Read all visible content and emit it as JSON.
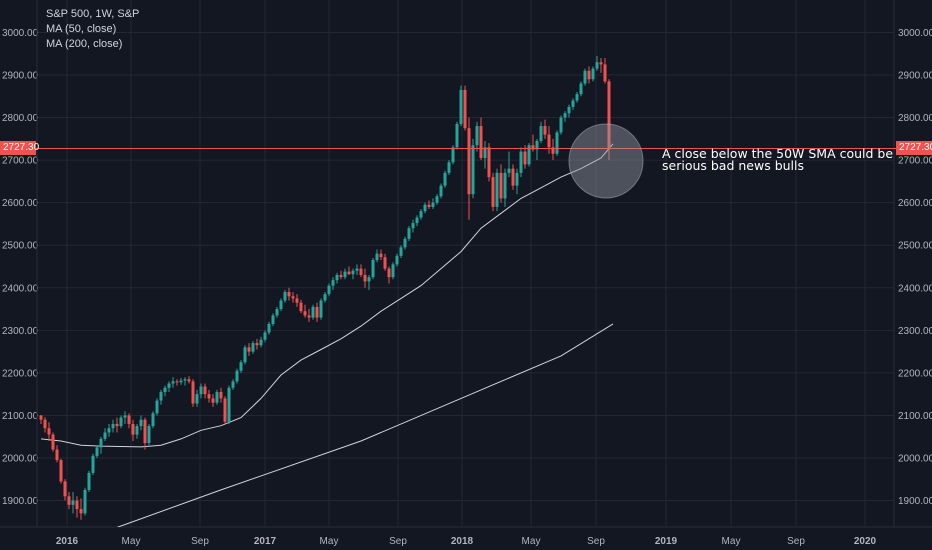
{
  "chart_data": {
    "type": "candlestick",
    "title": "S&P 500, 1W, S&P",
    "indicators": [
      "MA (50, close)",
      "MA (200, close)"
    ],
    "last_price": "2727.30",
    "annotation": [
      "A close below the 50W SMA could be",
      "serious bad news bulls"
    ],
    "y_ticks": [
      "1900.00",
      "2000.00",
      "2100.00",
      "2200.00",
      "2300.00",
      "2400.00",
      "2500.00",
      "2600.00",
      "2700.00",
      "2800.00",
      "2900.00",
      "3000.00"
    ],
    "ylim": [
      1830,
      3050
    ],
    "x_ticks": [
      "2016",
      "May",
      "Sep",
      "2017",
      "May",
      "Sep",
      "2018",
      "May",
      "Sep",
      "2019",
      "May",
      "Sep",
      "2020"
    ],
    "grid": true,
    "colors": {
      "up": "#26a69a",
      "down": "#ef5350",
      "background": "#131722",
      "ma": "#d1d4dc",
      "price_line": "#ef5350",
      "highlight": "#9598a1"
    },
    "ohlc": [
      [
        2100,
        2101,
        2080,
        2090
      ],
      [
        2090,
        2096,
        2060,
        2070
      ],
      [
        2070,
        2084,
        2040,
        2055
      ],
      [
        2055,
        2060,
        2015,
        2020
      ],
      [
        2020,
        2030,
        1990,
        1995
      ],
      [
        1995,
        1998,
        1940,
        1945
      ],
      [
        1945,
        1950,
        1900,
        1910
      ],
      [
        1910,
        1920,
        1880,
        1890
      ],
      [
        1890,
        1920,
        1870,
        1900
      ],
      [
        1900,
        1910,
        1860,
        1880
      ],
      [
        1880,
        1905,
        1855,
        1870
      ],
      [
        1870,
        1930,
        1865,
        1925
      ],
      [
        1925,
        1970,
        1920,
        1965
      ],
      [
        1965,
        2010,
        1960,
        2005
      ],
      [
        2005,
        2030,
        2000,
        2025
      ],
      [
        2025,
        2050,
        2010,
        2045
      ],
      [
        2045,
        2070,
        2040,
        2060
      ],
      [
        2060,
        2080,
        2050,
        2070
      ],
      [
        2070,
        2090,
        2060,
        2080
      ],
      [
        2080,
        2095,
        2060,
        2075
      ],
      [
        2075,
        2100,
        2070,
        2095
      ],
      [
        2095,
        2110,
        2080,
        2100
      ],
      [
        2100,
        2105,
        2070,
        2080
      ],
      [
        2080,
        2090,
        2040,
        2055
      ],
      [
        2055,
        2080,
        2045,
        2075
      ],
      [
        2075,
        2100,
        2065,
        2090
      ],
      [
        2090,
        2095,
        2020,
        2035
      ],
      [
        2035,
        2080,
        2030,
        2075
      ],
      [
        2075,
        2110,
        2070,
        2105
      ],
      [
        2105,
        2140,
        2100,
        2135
      ],
      [
        2135,
        2160,
        2125,
        2155
      ],
      [
        2155,
        2170,
        2145,
        2165
      ],
      [
        2165,
        2180,
        2155,
        2175
      ],
      [
        2175,
        2190,
        2165,
        2180
      ],
      [
        2180,
        2185,
        2170,
        2178
      ],
      [
        2178,
        2188,
        2172,
        2182
      ],
      [
        2182,
        2190,
        2170,
        2185
      ],
      [
        2185,
        2192,
        2175,
        2180
      ],
      [
        2180,
        2185,
        2120,
        2128
      ],
      [
        2128,
        2160,
        2120,
        2150
      ],
      [
        2150,
        2175,
        2140,
        2168
      ],
      [
        2168,
        2175,
        2140,
        2150
      ],
      [
        2150,
        2160,
        2130,
        2140
      ],
      [
        2140,
        2150,
        2120,
        2130
      ],
      [
        2130,
        2160,
        2125,
        2155
      ],
      [
        2155,
        2165,
        2130,
        2140
      ],
      [
        2140,
        2145,
        2080,
        2085
      ],
      [
        2085,
        2170,
        2080,
        2165
      ],
      [
        2165,
        2185,
        2160,
        2180
      ],
      [
        2180,
        2210,
        2175,
        2205
      ],
      [
        2205,
        2230,
        2200,
        2225
      ],
      [
        2225,
        2265,
        2220,
        2260
      ],
      [
        2260,
        2270,
        2240,
        2250
      ],
      [
        2250,
        2275,
        2245,
        2270
      ],
      [
        2270,
        2280,
        2255,
        2265
      ],
      [
        2265,
        2285,
        2260,
        2278
      ],
      [
        2278,
        2300,
        2272,
        2295
      ],
      [
        2295,
        2320,
        2290,
        2315
      ],
      [
        2315,
        2340,
        2310,
        2335
      ],
      [
        2335,
        2355,
        2330,
        2350
      ],
      [
        2350,
        2375,
        2345,
        2370
      ],
      [
        2370,
        2395,
        2365,
        2390
      ],
      [
        2390,
        2400,
        2370,
        2380
      ],
      [
        2380,
        2390,
        2365,
        2375
      ],
      [
        2375,
        2385,
        2355,
        2365
      ],
      [
        2365,
        2372,
        2340,
        2345
      ],
      [
        2345,
        2360,
        2330,
        2335
      ],
      [
        2335,
        2350,
        2320,
        2330
      ],
      [
        2330,
        2360,
        2325,
        2355
      ],
      [
        2355,
        2365,
        2320,
        2330
      ],
      [
        2330,
        2375,
        2325,
        2370
      ],
      [
        2370,
        2390,
        2365,
        2385
      ],
      [
        2385,
        2410,
        2380,
        2405
      ],
      [
        2405,
        2425,
        2395,
        2418
      ],
      [
        2418,
        2435,
        2410,
        2430
      ],
      [
        2430,
        2440,
        2420,
        2425
      ],
      [
        2425,
        2445,
        2420,
        2438
      ],
      [
        2438,
        2450,
        2430,
        2432
      ],
      [
        2432,
        2445,
        2420,
        2440
      ],
      [
        2440,
        2455,
        2430,
        2445
      ],
      [
        2445,
        2455,
        2425,
        2430
      ],
      [
        2430,
        2445,
        2400,
        2415
      ],
      [
        2415,
        2430,
        2395,
        2425
      ],
      [
        2425,
        2470,
        2420,
        2465
      ],
      [
        2465,
        2490,
        2460,
        2480
      ],
      [
        2480,
        2490,
        2465,
        2472
      ],
      [
        2472,
        2480,
        2440,
        2445
      ],
      [
        2445,
        2450,
        2410,
        2425
      ],
      [
        2425,
        2460,
        2420,
        2455
      ],
      [
        2455,
        2480,
        2450,
        2475
      ],
      [
        2475,
        2500,
        2470,
        2495
      ],
      [
        2495,
        2520,
        2490,
        2515
      ],
      [
        2515,
        2545,
        2510,
        2540
      ],
      [
        2540,
        2560,
        2530,
        2552
      ],
      [
        2552,
        2570,
        2545,
        2565
      ],
      [
        2565,
        2585,
        2560,
        2580
      ],
      [
        2580,
        2600,
        2575,
        2595
      ],
      [
        2595,
        2605,
        2585,
        2590
      ],
      [
        2590,
        2610,
        2585,
        2600
      ],
      [
        2600,
        2620,
        2595,
        2615
      ],
      [
        2615,
        2645,
        2610,
        2640
      ],
      [
        2640,
        2675,
        2635,
        2670
      ],
      [
        2670,
        2700,
        2665,
        2695
      ],
      [
        2695,
        2735,
        2690,
        2730
      ],
      [
        2730,
        2790,
        2725,
        2785
      ],
      [
        2785,
        2875,
        2780,
        2865
      ],
      [
        2865,
        2875,
        2770,
        2775
      ],
      [
        2775,
        2800,
        2560,
        2620
      ],
      [
        2620,
        2750,
        2610,
        2735
      ],
      [
        2735,
        2790,
        2720,
        2780
      ],
      [
        2780,
        2800,
        2700,
        2705
      ],
      [
        2705,
        2745,
        2680,
        2730
      ],
      [
        2730,
        2740,
        2650,
        2660
      ],
      [
        2660,
        2670,
        2580,
        2590
      ],
      [
        2590,
        2680,
        2580,
        2670
      ],
      [
        2670,
        2690,
        2600,
        2610
      ],
      [
        2610,
        2680,
        2590,
        2670
      ],
      [
        2670,
        2720,
        2660,
        2680
      ],
      [
        2680,
        2690,
        2630,
        2640
      ],
      [
        2640,
        2680,
        2620,
        2670
      ],
      [
        2670,
        2730,
        2660,
        2720
      ],
      [
        2720,
        2735,
        2680,
        2690
      ],
      [
        2690,
        2740,
        2685,
        2735
      ],
      [
        2735,
        2760,
        2720,
        2725
      ],
      [
        2725,
        2750,
        2700,
        2745
      ],
      [
        2745,
        2790,
        2740,
        2780
      ],
      [
        2780,
        2795,
        2750,
        2760
      ],
      [
        2760,
        2780,
        2715,
        2730
      ],
      [
        2730,
        2750,
        2700,
        2715
      ],
      [
        2715,
        2770,
        2710,
        2765
      ],
      [
        2765,
        2805,
        2760,
        2800
      ],
      [
        2800,
        2815,
        2790,
        2810
      ],
      [
        2810,
        2830,
        2800,
        2825
      ],
      [
        2825,
        2845,
        2818,
        2840
      ],
      [
        2840,
        2860,
        2835,
        2855
      ],
      [
        2855,
        2885,
        2850,
        2880
      ],
      [
        2880,
        2915,
        2875,
        2910
      ],
      [
        2910,
        2920,
        2880,
        2890
      ],
      [
        2890,
        2920,
        2885,
        2915
      ],
      [
        2915,
        2945,
        2910,
        2930
      ],
      [
        2930,
        2940,
        2905,
        2925
      ],
      [
        2925,
        2940,
        2880,
        2885
      ],
      [
        2885,
        2890,
        2700,
        2727.3
      ]
    ],
    "ma50": [
      [
        0,
        2045
      ],
      [
        5,
        2040
      ],
      [
        10,
        2030
      ],
      [
        15,
        2028
      ],
      [
        20,
        2027
      ],
      [
        25,
        2026
      ],
      [
        30,
        2030
      ],
      [
        35,
        2045
      ],
      [
        40,
        2065
      ],
      [
        45,
        2076
      ],
      [
        50,
        2095
      ],
      [
        55,
        2140
      ],
      [
        60,
        2195
      ],
      [
        65,
        2230
      ],
      [
        70,
        2255
      ],
      [
        75,
        2280
      ],
      [
        80,
        2310
      ],
      [
        85,
        2345
      ],
      [
        90,
        2375
      ],
      [
        95,
        2405
      ],
      [
        100,
        2445
      ],
      [
        105,
        2485
      ],
      [
        110,
        2540
      ],
      [
        115,
        2575
      ],
      [
        120,
        2610
      ],
      [
        125,
        2635
      ],
      [
        130,
        2660
      ],
      [
        135,
        2680
      ],
      [
        140,
        2705
      ],
      [
        143,
        2738
      ]
    ],
    "ma200": [
      [
        14,
        1820
      ],
      [
        45,
        1925
      ],
      [
        80,
        2040
      ],
      [
        110,
        2160
      ],
      [
        130,
        2240
      ],
      [
        143,
        2315
      ]
    ]
  }
}
